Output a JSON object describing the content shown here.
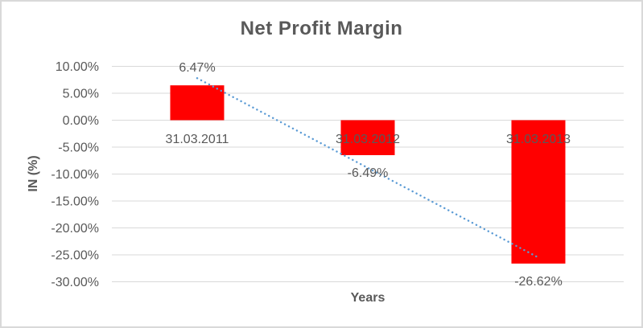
{
  "chart_data": {
    "type": "bar",
    "title": "Net Profit Margin",
    "xlabel": "Years",
    "ylabel": "IN (%)",
    "categories": [
      "31.03.2011",
      "31.03.2012",
      "31.03.2013"
    ],
    "values": [
      6.47,
      -6.49,
      -26.62
    ],
    "data_labels": [
      "6.47%",
      "-6.49%",
      "-26.62%"
    ],
    "ylim": [
      -30,
      10
    ],
    "yticks": [
      {
        "value": 10,
        "label": "10.00%"
      },
      {
        "value": 5,
        "label": "5.00%"
      },
      {
        "value": 0,
        "label": "0.00%"
      },
      {
        "value": -5,
        "label": "-5.00%"
      },
      {
        "value": -10,
        "label": "-10.00%"
      },
      {
        "value": -15,
        "label": "-15.00%"
      },
      {
        "value": -20,
        "label": "-20.00%"
      },
      {
        "value": -25,
        "label": "-25.00%"
      },
      {
        "value": -30,
        "label": "-30.00%"
      }
    ],
    "grid": true,
    "legend": "none",
    "trendline": {
      "type": "linear",
      "style": "dotted",
      "start_category_index": 0,
      "end_category_index": 2,
      "start_value": 7.8,
      "end_value": -25.5
    },
    "colors": {
      "bar": "#ff0000",
      "trendline": "#5b9bd5",
      "gridline": "#d9d9d9",
      "text": "#595959",
      "frame_border": "#d9d9d9",
      "background": "#ffffff"
    }
  }
}
